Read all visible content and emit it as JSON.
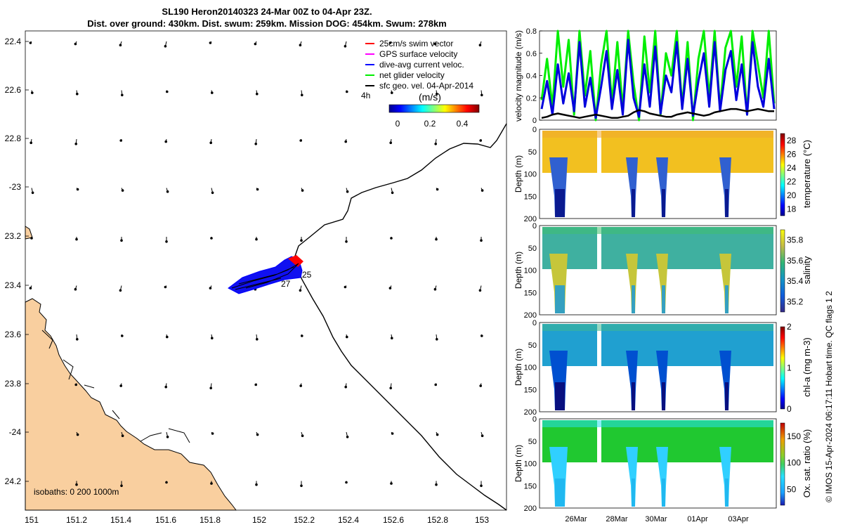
{
  "title": {
    "line1": "SL190 Heron20140323 24-Mar 00Z to 04-Apr 23Z.",
    "line2": "Dist. over ground: 430km. Dist. swum: 259km. Mission DOG: 454km. Swum: 278km"
  },
  "credit": "© IMOS 15-Apr-2024 06:17:11 Hobart time. QC flags 1  2",
  "colors": {
    "land": "#f9cf9f",
    "swim": "#ff0000",
    "gps": "#ff00ff",
    "current": "#0000ff",
    "net": "#00ee00",
    "geo": "#000000"
  },
  "map": {
    "lat_ticks": [
      "22.4",
      "22.6",
      "22.8",
      "-23",
      "23.2",
      "23.4",
      "23.6",
      "23.8",
      "-24",
      "24.2"
    ],
    "lon_ticks": [
      "151",
      "151.2",
      "151.4",
      "151.6",
      "151.8",
      "152",
      "152.2",
      "152.4",
      "152.6",
      "152.8",
      "153"
    ],
    "legend": [
      {
        "label": "25cm/s swim vector",
        "color": "#ff0000"
      },
      {
        "label": "GPS surface velocity",
        "color": "#ff00ff"
      },
      {
        "label": "dive-avg current veloc.",
        "color": "#0000ff"
      },
      {
        "label": "net glider velocity",
        "color": "#00ee00"
      },
      {
        "label": "sfc geo. vel. 04-Apr-2014",
        "color": "#000000"
      }
    ],
    "legend_4h": "4h",
    "colorbar_label": "(m/s)",
    "colorbar_ticks": [
      "0",
      "0.2",
      "0.4"
    ],
    "isobaths": "isobaths: 0   200  1000m",
    "day_labels": [
      "25",
      "27"
    ]
  },
  "chart_data": [
    {
      "type": "line",
      "title": "",
      "ylabel": "velocity magnitude (m/s)",
      "ylim": [
        0,
        0.8
      ],
      "yticks": [
        "0",
        "0.2",
        "0.4",
        "0.6",
        "0.8"
      ],
      "series": [
        {
          "name": "net glider velocity",
          "color": "#00ee00",
          "values": [
            0.18,
            0.55,
            0.12,
            0.8,
            0.3,
            0.72,
            0.05,
            0.8,
            0.22,
            0.62,
            0.0,
            0.5,
            0.8,
            0.15,
            0.7,
            0.1,
            0.8,
            0.33,
            0.0,
            0.75,
            0.25,
            0.8,
            0.05,
            0.6,
            0.4,
            0.8,
            0.12,
            0.7,
            0.0,
            0.55,
            0.8,
            0.2,
            0.8,
            0.1,
            0.65,
            0.8,
            0.3,
            0.75,
            0.05,
            0.8,
            0.5,
            0.2,
            0.8,
            0.15
          ]
        },
        {
          "name": "dive-avg current veloc.",
          "color": "#0000dd",
          "values": [
            0.1,
            0.35,
            0.05,
            0.5,
            0.15,
            0.42,
            0.08,
            0.7,
            0.12,
            0.38,
            0.02,
            0.3,
            0.62,
            0.1,
            0.45,
            0.05,
            0.72,
            0.2,
            0.03,
            0.5,
            0.12,
            0.66,
            0.06,
            0.4,
            0.25,
            0.7,
            0.1,
            0.55,
            0.04,
            0.35,
            0.6,
            0.12,
            0.7,
            0.08,
            0.45,
            0.62,
            0.18,
            0.5,
            0.05,
            0.7,
            0.3,
            0.12,
            0.55,
            0.1
          ]
        },
        {
          "name": "sfc geo. vel.",
          "color": "#000000",
          "values": [
            0.02,
            0.03,
            0.05,
            0.06,
            0.05,
            0.04,
            0.03,
            0.02,
            0.03,
            0.04,
            0.05,
            0.04,
            0.03,
            0.02,
            0.02,
            0.03,
            0.04,
            0.07,
            0.09,
            0.08,
            0.06,
            0.05,
            0.04,
            0.03,
            0.03,
            0.05,
            0.06,
            0.07,
            0.06,
            0.05,
            0.04,
            0.05,
            0.07,
            0.08,
            0.09,
            0.1,
            0.1,
            0.09,
            0.08,
            0.09,
            0.1,
            0.09,
            0.08,
            0.08
          ]
        }
      ]
    },
    {
      "type": "heatmap",
      "variable": "temperature",
      "ylabel": "Depth (m)",
      "cbar_label": "temperature (°C)",
      "ylim": [
        200,
        0
      ],
      "yticks": [
        "0",
        "50",
        "100",
        "150",
        "200"
      ],
      "cbar_ticks": [
        "18",
        "20",
        "22",
        "24",
        "26",
        "28"
      ],
      "clim": [
        17,
        29
      ]
    },
    {
      "type": "heatmap",
      "variable": "salinity",
      "ylabel": "Depth (m)",
      "cbar_label": "salinity",
      "ylim": [
        200,
        0
      ],
      "yticks": [
        "0",
        "50",
        "100",
        "150",
        "200"
      ],
      "cbar_ticks": [
        "35.2",
        "35.4",
        "35.6",
        "35.8"
      ],
      "clim": [
        35.1,
        35.9
      ]
    },
    {
      "type": "heatmap",
      "variable": "chl-a",
      "ylabel": "Depth (m)",
      "cbar_label": "chl-a (mg m-3)",
      "ylim": [
        200,
        0
      ],
      "yticks": [
        "0",
        "50",
        "100",
        "150",
        "200"
      ],
      "cbar_ticks": [
        "0",
        "1",
        "2"
      ],
      "clim": [
        0,
        2
      ]
    },
    {
      "type": "heatmap",
      "variable": "oxygen saturation",
      "ylabel": "Depth (m)",
      "cbar_label": "Ox. sat. ratio (%)",
      "ylim": [
        200,
        0
      ],
      "yticks": [
        "0",
        "50",
        "100",
        "150",
        "200"
      ],
      "cbar_ticks": [
        "50",
        "100",
        "150"
      ],
      "clim": [
        20,
        175
      ],
      "xticks": [
        "26Mar",
        "28Mar",
        "30Mar",
        "01Apr",
        "03Apr"
      ]
    }
  ]
}
